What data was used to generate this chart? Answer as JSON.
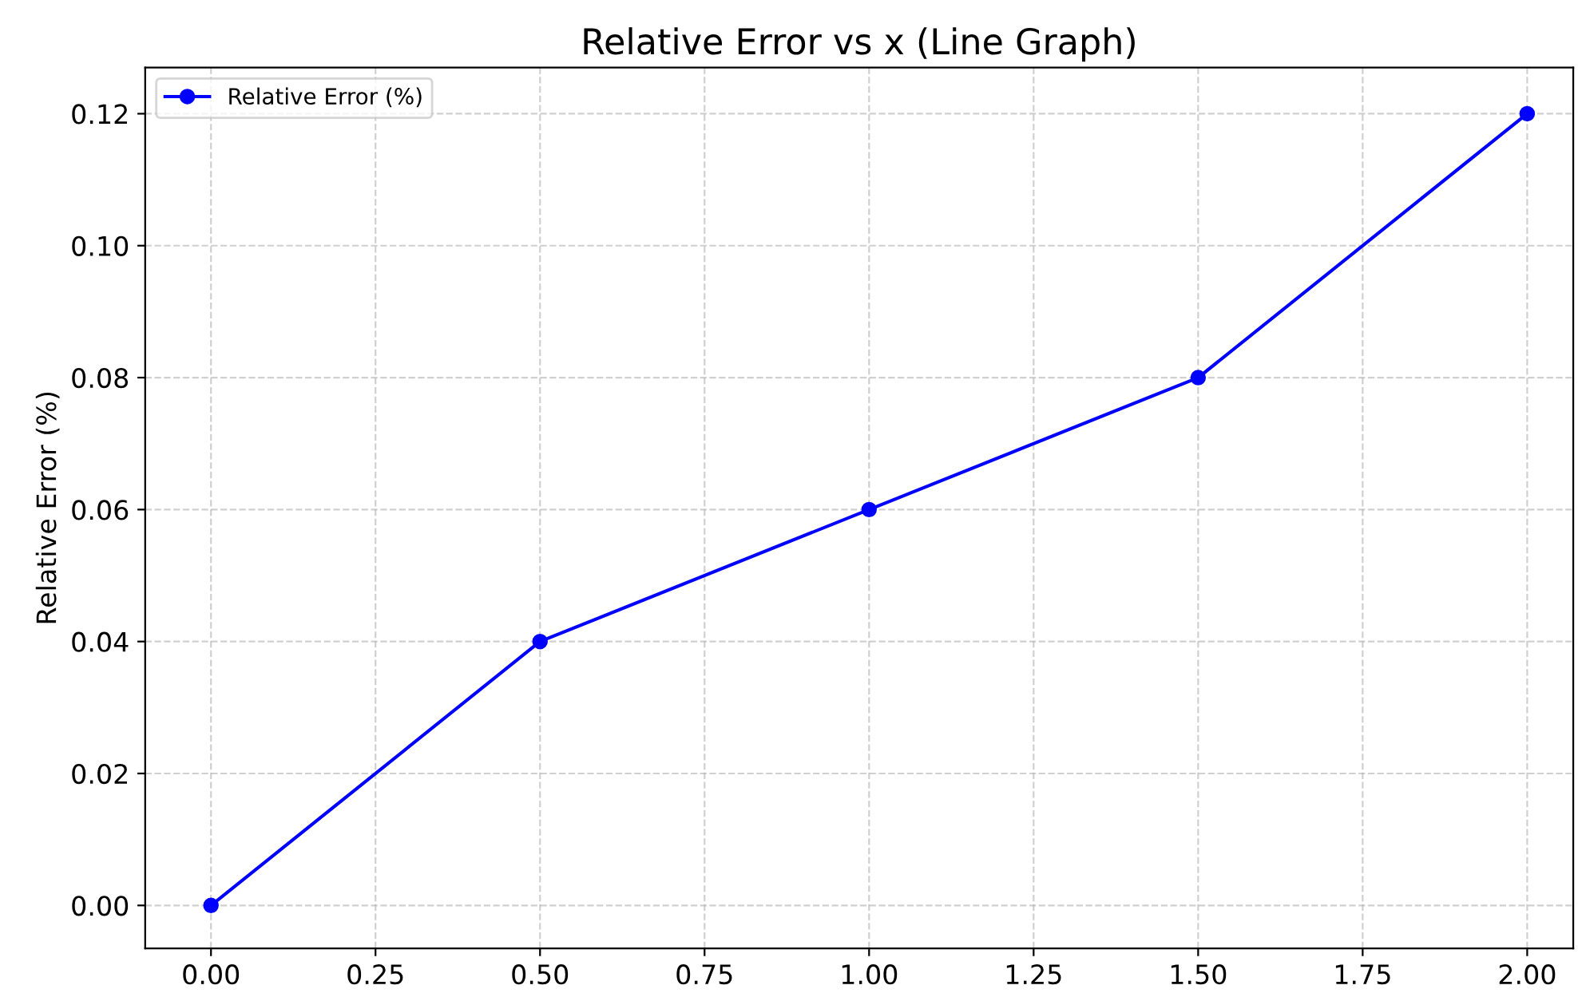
{
  "chart_data": {
    "type": "line",
    "title": "Relative Error vs x (Line Graph)",
    "ylabel": "Relative Error (%)",
    "x": [
      0,
      0.5,
      1.0,
      1.5,
      2.0
    ],
    "series": [
      {
        "name": "Relative Error (%)",
        "color": "#0000ff",
        "values": [
          0,
          0.04,
          0.06,
          0.08,
          0.12
        ]
      }
    ],
    "xlim": [
      -0.1,
      2.07
    ],
    "ylim": [
      -0.0065,
      0.127
    ],
    "xticks": [
      {
        "value": 0,
        "label": "0.00"
      },
      {
        "value": 0.25,
        "label": "0.25"
      },
      {
        "value": 0.5,
        "label": "0.50"
      },
      {
        "value": 0.75,
        "label": "0.75"
      },
      {
        "value": 1.0,
        "label": "1.00"
      },
      {
        "value": 1.25,
        "label": "1.25"
      },
      {
        "value": 1.5,
        "label": "1.50"
      },
      {
        "value": 1.75,
        "label": "1.75"
      },
      {
        "value": 2.0,
        "label": "2.00"
      }
    ],
    "yticks": [
      {
        "value": 0,
        "label": "0.00"
      },
      0.02,
      0.04,
      0.06,
      0.08,
      {
        "value": 0.1,
        "label": "0.10"
      },
      0.12
    ],
    "grid": true,
    "legend": "top left",
    "marker": "circle",
    "line_style": "solid"
  }
}
